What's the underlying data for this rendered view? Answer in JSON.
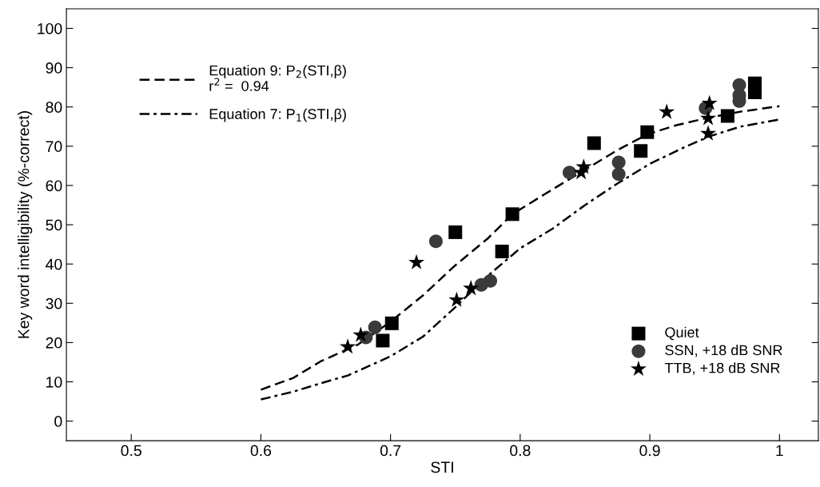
{
  "chart_data": {
    "type": "scatter",
    "xlabel": "STI",
    "ylabel": "Key word intelligibility (%-correct)",
    "xlim": [
      0.45,
      1.03
    ],
    "xticks": [
      0.5,
      0.6,
      0.7,
      0.8,
      0.9,
      1
    ],
    "ylim": [
      -5,
      105
    ],
    "yticks": [
      0,
      10,
      20,
      30,
      40,
      50,
      60,
      70,
      80,
      90,
      100
    ],
    "grid": false,
    "legend": [
      "top left",
      "bottom right"
    ],
    "series": [
      {
        "name": "Equation 9: P$_{2}$(STI,β)\nr$^{2}$ =  0.94",
        "type": "line",
        "line_style": "dashed",
        "marker": "none",
        "color": "#000000",
        "x": [
          0.6,
          0.625,
          0.646,
          0.675,
          0.7,
          0.725,
          0.749,
          0.775,
          0.794,
          0.819,
          0.85,
          0.875,
          0.898,
          0.92,
          0.943,
          0.97,
          1.0
        ],
        "values": [
          8,
          11,
          15.2,
          19.5,
          25.3,
          32,
          39.4,
          46.5,
          52.7,
          57.8,
          64,
          69,
          73,
          75.3,
          77.1,
          78.8,
          80.2
        ]
      },
      {
        "name": "Equation 7: P$_{1}$(STI,β)",
        "type": "line",
        "line_style": "dashdot",
        "marker": "none",
        "color": "#000000",
        "x": [
          0.6,
          0.625,
          0.65,
          0.667,
          0.7,
          0.725,
          0.75,
          0.775,
          0.8,
          0.825,
          0.85,
          0.875,
          0.9,
          0.925,
          0.945,
          0.97,
          1.0
        ],
        "values": [
          5.5,
          7.5,
          10,
          11.6,
          16.5,
          21.5,
          29,
          37,
          44,
          49,
          55,
          60.5,
          65.5,
          69.5,
          72.4,
          75,
          76.8
        ]
      },
      {
        "name": "Quiet",
        "marker": "square",
        "color": "#000000",
        "x": [
          0.694,
          0.701,
          0.75,
          0.786,
          0.794,
          0.857,
          0.893,
          0.898,
          0.96,
          0.981,
          0.981
        ],
        "values": [
          20.5,
          24.9,
          48.1,
          43.2,
          52.7,
          70.8,
          68.8,
          73.6,
          77.7,
          83.7,
          86.0
        ]
      },
      {
        "name": "SSN, +18 dB SNR",
        "marker": "circle",
        "color": "#3a3a3a",
        "x": [
          0.681,
          0.688,
          0.735,
          0.77,
          0.777,
          0.838,
          0.876,
          0.876,
          0.943,
          0.969,
          0.969,
          0.969
        ],
        "values": [
          21.3,
          23.9,
          45.8,
          34.7,
          35.7,
          63.3,
          62.9,
          65.9,
          79.7,
          81.5,
          83.0,
          85.6
        ]
      },
      {
        "name": "TTB, +18 dB SNR",
        "marker": "star",
        "color": "#000000",
        "x": [
          0.667,
          0.677,
          0.72,
          0.751,
          0.762,
          0.847,
          0.849,
          0.913,
          0.945,
          0.945,
          0.946
        ],
        "values": [
          18.9,
          21.9,
          40.4,
          30.8,
          33.8,
          63.3,
          64.7,
          78.7,
          73.2,
          77.1,
          80.9
        ]
      }
    ]
  }
}
